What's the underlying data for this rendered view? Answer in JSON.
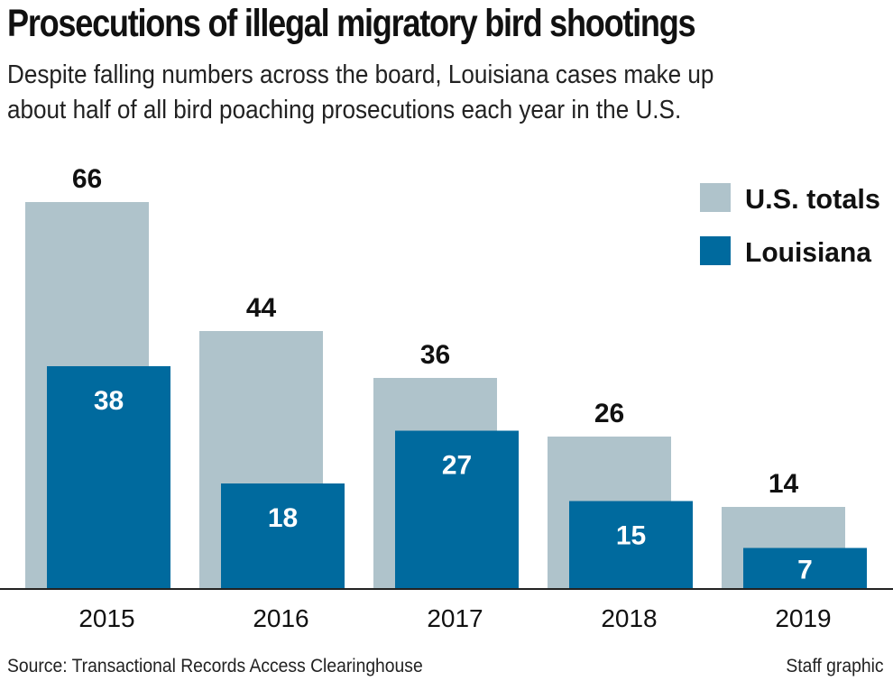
{
  "header": {
    "title": "Prosecutions of illegal migratory bird shootings",
    "subtitle_line1": "Despite falling numbers across the board, Louisiana cases make up",
    "subtitle_line2": "about half of all bird poaching prosecutions each year in the U.S."
  },
  "footer": {
    "source": "Source: Transactional Records Access Clearinghouse",
    "credit": "Staff graphic"
  },
  "colors": {
    "us_totals": "#afc3cb",
    "louisiana": "#006a9e",
    "axis": "#222222"
  },
  "chart_data": {
    "type": "bar",
    "categories": [
      "2015",
      "2016",
      "2017",
      "2018",
      "2019"
    ],
    "series": [
      {
        "name": "U.S. totals",
        "values": [
          66,
          44,
          36,
          26,
          14
        ]
      },
      {
        "name": "Louisiana",
        "values": [
          38,
          18,
          27,
          15,
          7
        ]
      }
    ],
    "ylim": [
      0,
      66
    ],
    "legend_position": "top-right",
    "grid": false
  }
}
